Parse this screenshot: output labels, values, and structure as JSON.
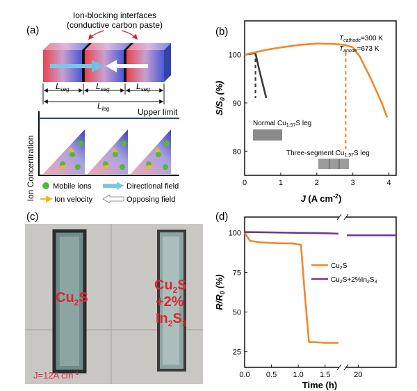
{
  "panels": {
    "a": {
      "label": "(a)",
      "interface_title_line1": "Ion-blocking interfaces",
      "interface_title_line2": "(conductive carbon paste)",
      "seg_label": "L",
      "seg_sub": "seg",
      "leg_label": "L",
      "leg_sub": "leg",
      "upper_limit": "Upper limit",
      "y_axis": "Ion Concentration",
      "legend": {
        "mobile_ions": "Mobile ions",
        "directional_field": "Directional field",
        "ion_velocity": "Ion velocity",
        "opposing_field": "Opposing field"
      }
    },
    "b": {
      "label": "(b)"
    },
    "c": {
      "label": "(c)",
      "sample1": "Cu",
      "sample1_sub": "2",
      "sample1_tail": "S",
      "sample2_l1": "Cu",
      "sample2_l1_sub": "2",
      "sample2_l1_tail": "S",
      "sample2_l2": "+2%",
      "sample2_l3": "In",
      "sample2_l3_sub1": "2",
      "sample2_l3_mid": "S",
      "sample2_l3_sub2": "3",
      "current": "J=12A cm",
      "current_sup": "-1"
    },
    "d": {
      "label": "(d)"
    }
  },
  "chart_data": [
    {
      "panel": "b",
      "type": "line",
      "xlabel": "J (A cm⁻²)",
      "ylabel": "S/S₀ (%)",
      "xlim": [
        0,
        4.2
      ],
      "ylim": [
        75,
        107
      ],
      "xticks": [
        "0",
        "1",
        "2",
        "3",
        "4"
      ],
      "yticks": [
        "80",
        "90",
        "100"
      ],
      "annotation_l1": "T_cathode=300 K",
      "annotation_l2": "T_anode=673 K",
      "series": [
        {
          "name": "Normal Cu1.97S leg",
          "color": "#3a3a3a",
          "x": [
            0,
            0.3,
            0.4,
            0.5,
            0.6
          ],
          "y": [
            100,
            100.3,
            97,
            94,
            91
          ]
        },
        {
          "name": "Three-segment Cu1.97S leg",
          "color": "#f0892a",
          "x": [
            0,
            0.3,
            0.6,
            1.0,
            1.5,
            2.0,
            2.5,
            2.8,
            3.0,
            3.2,
            3.5,
            3.8,
            3.95
          ],
          "y": [
            100,
            100.5,
            101,
            101.5,
            102,
            102.3,
            102.2,
            102,
            101.5,
            99.5,
            95,
            90,
            87
          ]
        }
      ],
      "markers": [
        {
          "x": 0.3,
          "color": "#3a3a3a",
          "label": "Normal Cu1.97S leg"
        },
        {
          "x": 2.8,
          "color": "#f0892a",
          "label": "Three-segment Cu1.97S leg"
        }
      ]
    },
    {
      "panel": "d",
      "type": "line",
      "xlabel": "Time (h)",
      "ylabel": "R/R₀ (%)",
      "xlim": [
        0,
        25
      ],
      "ylim": [
        15,
        110
      ],
      "xticks": [
        "0.0",
        "0.5",
        "1.0",
        "1.5",
        "20"
      ],
      "yticks": [
        "25",
        "50",
        "75",
        "100"
      ],
      "series": [
        {
          "name": "Cu2S",
          "color": "#f0892a",
          "x": [
            0,
            0.1,
            0.3,
            0.6,
            0.9,
            1.05,
            1.12,
            1.2,
            1.3,
            1.5,
            1.75
          ],
          "y": [
            100,
            95,
            94,
            93.5,
            93.3,
            92.5,
            62,
            31,
            31,
            30.5,
            30.5
          ]
        },
        {
          "name": "Cu2S+2%In2S3",
          "color": "#6a3d8f",
          "x_segment1": [
            0,
            0.5,
            1.0,
            1.5,
            1.75
          ],
          "y_segment1": [
            100.5,
            100.3,
            100,
            99.8,
            99.5
          ],
          "x_segment2": [
            18.5,
            20,
            22,
            24,
            25
          ],
          "y_segment2": [
            98.5,
            98.5,
            98.5,
            98.5,
            98.5
          ]
        }
      ],
      "legend_cu2s": "Cu",
      "legend_cu2s_sub": "2",
      "legend_cu2s_tail": "S",
      "legend_in_l1": "Cu",
      "legend_in_sub1": "2",
      "legend_in_mid": "S+2%In",
      "legend_in_sub2": "2",
      "legend_in_mid2": "S",
      "legend_in_sub3": "3"
    }
  ]
}
